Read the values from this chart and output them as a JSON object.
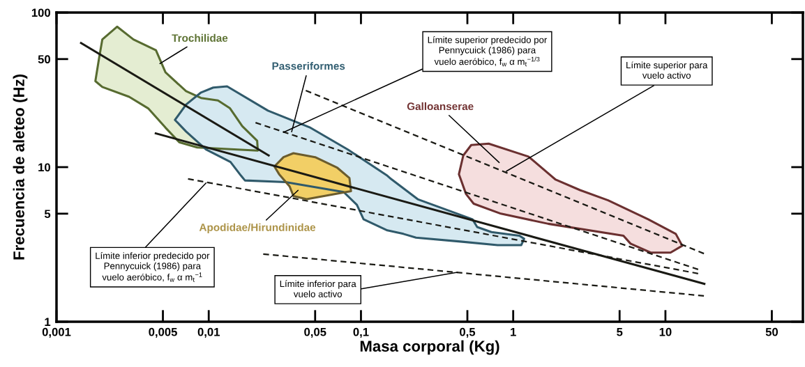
{
  "chart_data": {
    "type": "area",
    "xlabel": "Masa corporal (Kg)",
    "ylabel": "Frecuencia de aleteo (Hz)",
    "log": "xy",
    "xlim": [
      0.001,
      80
    ],
    "ylim": [
      1,
      100
    ],
    "xticks": [
      {
        "value": 0.001,
        "label": "0,001"
      },
      {
        "value": 0.005,
        "label": "0,005"
      },
      {
        "value": 0.01,
        "label": "0,01"
      },
      {
        "value": 0.05,
        "label": "0,05"
      },
      {
        "value": 0.1,
        "label": "0,1"
      },
      {
        "value": 0.5,
        "label": "0,5"
      },
      1,
      5,
      10,
      50
    ],
    "yticks": [
      1,
      5,
      10,
      50,
      100
    ],
    "grid": false,
    "legend": false,
    "tick_labels": "both",
    "series": [
      {
        "name": "Trochilidae",
        "color": "#e4edd2",
        "x": [
          0.0025,
          0.002,
          0.0019,
          0.0018,
          0.002,
          0.003,
          0.004,
          0.0052,
          0.0064,
          0.0084,
          0.021,
          0.0208,
          0.0166,
          0.0138,
          0.0115,
          0.0089,
          0.0071,
          0.0052,
          0.0045,
          0.0032
        ],
        "values": [
          81,
          67,
          50,
          36,
          33,
          28.5,
          24,
          18,
          14.5,
          13.4,
          12.8,
          14.8,
          18.4,
          24,
          27,
          28,
          31,
          41,
          57,
          67
        ]
      },
      {
        "name": "Passeriformes",
        "color": "#d6e9f1",
        "x": [
          0.0107,
          0.0132,
          0.0245,
          0.046,
          0.082,
          0.149,
          0.155,
          0.236,
          0.54,
          0.58,
          0.72,
          1.1,
          1.18,
          1.13,
          0.79,
          0.45,
          0.23,
          0.19,
          0.149,
          0.104,
          0.094,
          0.077,
          0.032,
          0.0173,
          0.0163,
          0.0139,
          0.0096,
          0.0071,
          0.006,
          0.0071,
          0.0089
        ],
        "values": [
          32.7,
          33.3,
          23.2,
          18.1,
          13,
          8.8,
          8.5,
          6.2,
          4.6,
          4.1,
          3.8,
          3.6,
          3.44,
          3.13,
          3.13,
          3.3,
          3.5,
          3.7,
          3.9,
          4.6,
          5.7,
          6.9,
          8.0,
          8.2,
          8.8,
          10.8,
          13,
          17,
          20.2,
          25.4,
          30.4
        ]
      },
      {
        "name": "Apodidae/Hirundinidae",
        "color": "#f2cf66",
        "x": [
          0.027,
          0.031,
          0.036,
          0.05,
          0.07,
          0.084,
          0.086,
          0.068,
          0.044,
          0.036,
          0.034,
          0.029
        ],
        "values": [
          10.1,
          11.6,
          12.3,
          11.6,
          9.9,
          8.5,
          7.0,
          6.7,
          6.2,
          6.5,
          7.5,
          9.0
        ]
      },
      {
        "name": "Galloanserae",
        "color": "#f5dede",
        "x": [
          0.53,
          0.69,
          1.26,
          1.9,
          2.75,
          4.2,
          7.7,
          11.7,
          12.9,
          10.8,
          8,
          5.9,
          5.3,
          1.7,
          0.83,
          0.55,
          0.49,
          0.44,
          0.47
        ],
        "values": [
          13.9,
          14.2,
          11.7,
          8.3,
          7.1,
          6.1,
          4.6,
          3.7,
          3.1,
          2.8,
          2.8,
          3.2,
          3.6,
          4.3,
          5.0,
          5.8,
          6.7,
          9.0,
          11.9
        ]
      },
      {
        "type": "line",
        "color": "#1a1a14",
        "line_style": "solid",
        "x": [
          0.00143,
          0.0251
        ],
        "values": [
          64,
          11.8
        ]
      },
      {
        "type": "line",
        "color": "#1a1a14",
        "line_style": "solid",
        "x": [
          0.00442,
          18.3
        ],
        "values": [
          16.6,
          1.75
        ]
      },
      {
        "type": "line",
        "color": "#1a1a14",
        "line_style": "dashed",
        "x": [
          0.0434,
          17.9
        ],
        "values": [
          31.3,
          2.76
        ]
      },
      {
        "type": "line",
        "color": "#1a1a14",
        "line_style": "dashed",
        "x": [
          0.0203,
          16.4
        ],
        "values": [
          19.4,
          2.18
        ]
      },
      {
        "type": "line",
        "color": "#1a1a14",
        "line_style": "dashed",
        "x": [
          0.00731,
          16.4
        ],
        "values": [
          8.4,
          2.05
        ]
      },
      {
        "type": "line",
        "color": "#1a1a14",
        "line_style": "dashed",
        "x": [
          0.0228,
          17.9
        ],
        "values": [
          2.74,
          1.47
        ]
      }
    ],
    "annotations": [
      {
        "text": "Límite superior predecido por\nPennycuick (1986) para\nvuelo aeróbico, f$_{w}$ α m$_{t}$$^{−1/3}$",
        "x": 0.031,
        "y": 16.8
      },
      {
        "text": "Límite superior para\nvuelo activo",
        "x": 0.9,
        "y": 9.4
      },
      {
        "text": "Límite inferior predecido por\nPennycuick (1986) para\nvuelo aeróbico, f$_{w}$ α m$_{t}$$^{−1}$",
        "x": 0.0096,
        "y": 7.9
      },
      {
        "text": "Límite inferior para\nvuelo activo",
        "x": 0.43,
        "y": 2.09
      }
    ]
  }
}
